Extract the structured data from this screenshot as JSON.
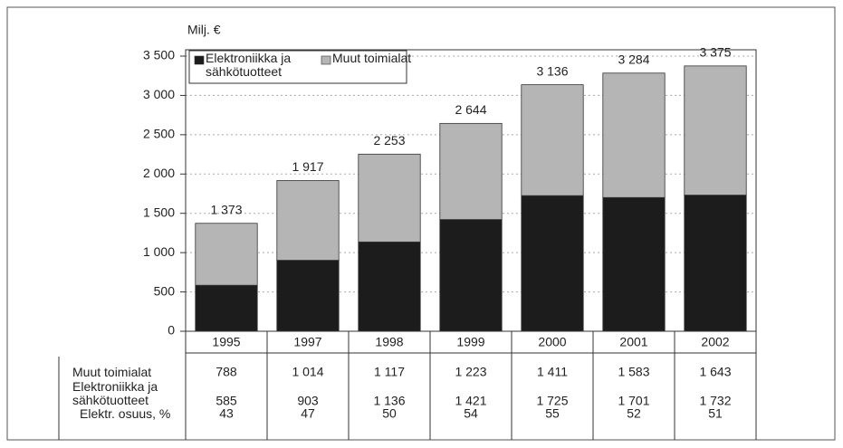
{
  "chart_data": {
    "type": "bar",
    "stacked": true,
    "y_label": "Milj. €",
    "categories": [
      "1995",
      "1997",
      "1998",
      "1999",
      "2000",
      "2001",
      "2002"
    ],
    "series": [
      {
        "name": "Elektroniikka ja sähkötuotteet",
        "color": "#1c1c1c",
        "values": [
          585,
          903,
          1136,
          1421,
          1725,
          1701,
          1732
        ],
        "value_labels": [
          "585",
          "903",
          "1 136",
          "1 421",
          "1 725",
          "1 701",
          "1 732"
        ]
      },
      {
        "name": "Muut toimialat",
        "color": "#b5b5b5",
        "values": [
          788,
          1014,
          1117,
          1223,
          1411,
          1583,
          1643
        ],
        "value_labels": [
          "788",
          "1 014",
          "1 117",
          "1 223",
          "1 411",
          "1 583",
          "1 643"
        ]
      }
    ],
    "totals": {
      "values": [
        1373,
        1917,
        2253,
        2644,
        3136,
        3284,
        3375
      ],
      "value_labels": [
        "1 373",
        "1 917",
        "2 253",
        "2 644",
        "3 136",
        "3 284",
        "3 375"
      ]
    },
    "share": {
      "name": "Elektr. osuus, %",
      "values": [
        43,
        47,
        50,
        54,
        55,
        52,
        51
      ]
    },
    "ylim": [
      0,
      3500
    ],
    "yticks": [
      0,
      500,
      {
        "value": 1000,
        "label": "1 000"
      },
      {
        "value": 1500,
        "label": "1 500"
      },
      {
        "value": 2000,
        "label": "2 000"
      },
      {
        "value": 2500,
        "label": "2 500"
      },
      {
        "value": 3000,
        "label": "3 000"
      },
      {
        "value": 3500,
        "label": "3 500"
      }
    ],
    "grid": true
  }
}
